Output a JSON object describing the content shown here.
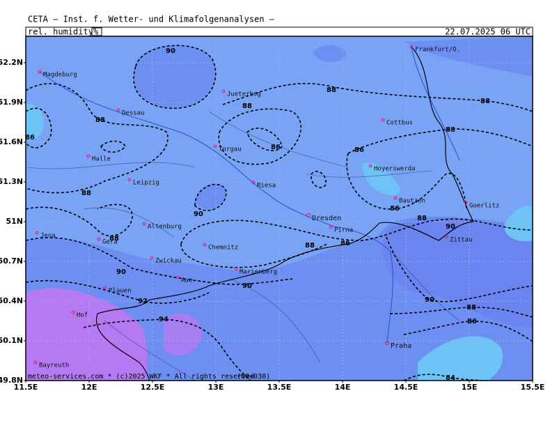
{
  "header": {
    "title": "CETA – Inst. f. Wetter- und Klimafolgenanalysen –",
    "parameter": "rel. humidity",
    "unit": "%",
    "valid_time": "22.07.2025 06 UTC"
  },
  "axes": {
    "lat_labels": [
      "52.2N",
      "51.9N",
      "51.6N",
      "51.3N",
      "51N",
      "50.7N",
      "50.4N",
      "50.1N",
      "49.8N"
    ],
    "lon_labels": [
      "11.5E",
      "12E",
      "12.5E",
      "13E",
      "13.5E",
      "14E",
      "14.5E",
      "15E",
      "15.5E"
    ]
  },
  "cities": [
    "Magdeburg",
    "Jueterbog",
    "Dessau",
    "Cottbus",
    "Frankfurt/O.",
    "Torgau",
    "Halle",
    "Hoyerswerda",
    "Leipzig",
    "Riesa",
    "Bautzen",
    "Goerlitz",
    "Dresden",
    "Pirna",
    "Altenburg",
    "Jena",
    "Gera",
    "Zittau",
    "Chemnitz",
    "Zwickau",
    "Marienberg",
    "Aue",
    "Plauen",
    "Hof",
    "Praha",
    "Bayreuth"
  ],
  "contour_labels": [
    "90",
    "88",
    "88",
    "88",
    "88",
    "86",
    "86",
    "86",
    "88",
    "88",
    "86",
    "88",
    "90",
    "90",
    "88",
    "88",
    "86",
    "90",
    "90",
    "92",
    "90",
    "94",
    "88",
    "86",
    "84"
  ],
  "footer": {
    "credit": "meteo-services.com * (c)2025 WKF * All rights reserved",
    "run": "(00+030)"
  }
}
